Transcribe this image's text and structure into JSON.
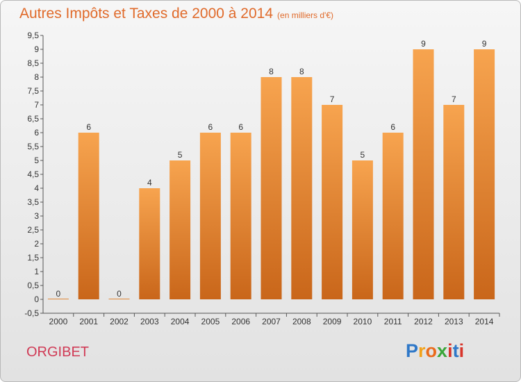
{
  "title": "Autres Impôts et Taxes de 2000 à 2014",
  "subtitle": "(en milliers d'€)",
  "commune": "ORGIBET",
  "logo": {
    "text": "Proxiti",
    "letters": [
      "P",
      "r",
      "o",
      "x",
      "i",
      "t",
      "i"
    ]
  },
  "colors": {
    "bar_light": "#f7a44f",
    "bar_dark": "#c9661a",
    "title": "#e06a2a",
    "commune": "#d03a55"
  },
  "chart_data": {
    "type": "bar",
    "categories": [
      "2000",
      "2001",
      "2002",
      "2003",
      "2004",
      "2005",
      "2006",
      "2007",
      "2008",
      "2009",
      "2010",
      "2011",
      "2012",
      "2013",
      "2014"
    ],
    "values": [
      0,
      6,
      0,
      4,
      5,
      6,
      6,
      8,
      8,
      7,
      5,
      6,
      9,
      7,
      9
    ],
    "value_labels": [
      "0",
      "6",
      "0",
      "4",
      "5",
      "6",
      "6",
      "8",
      "8",
      "7",
      "5",
      "6",
      "9",
      "7",
      "9"
    ],
    "y_ticks": [
      "-0,5",
      "0",
      "0,5",
      "1",
      "1,5",
      "2",
      "2,5",
      "3",
      "3,5",
      "4",
      "4,5",
      "5",
      "5,5",
      "6",
      "6,5",
      "7",
      "7,5",
      "8",
      "8,5",
      "9",
      "9,5"
    ],
    "y_tick_values": [
      -0.5,
      0,
      0.5,
      1,
      1.5,
      2,
      2.5,
      3,
      3.5,
      4,
      4.5,
      5,
      5.5,
      6,
      6.5,
      7,
      7.5,
      8,
      8.5,
      9,
      9.5
    ],
    "ylim": [
      -0.5,
      9.5
    ],
    "grid": false,
    "legend": "none",
    "xlabel": "",
    "ylabel": ""
  }
}
